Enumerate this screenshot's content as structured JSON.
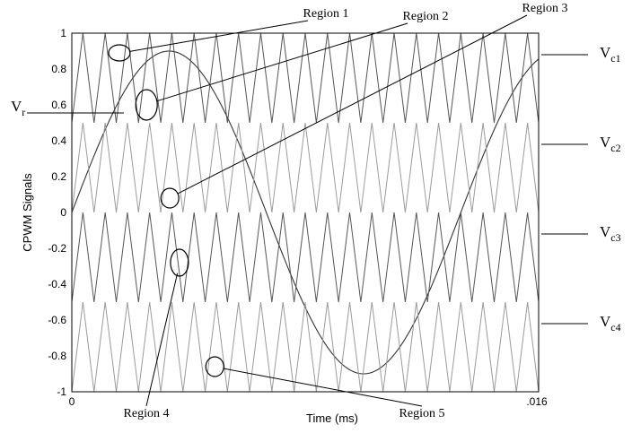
{
  "chart_data": {
    "type": "line",
    "title": "",
    "xlabel": "Time (ms)",
    "ylabel": "CPWM Signals",
    "xlim": [
      0,
      0.016
    ],
    "ylim": [
      -1,
      1
    ],
    "x_tick_labels": [
      "0",
      ".016"
    ],
    "y_ticks": [
      1,
      0.8,
      0.6,
      0.4,
      0.2,
      0,
      -0.2,
      -0.4,
      -0.6,
      -0.8,
      -1
    ],
    "y_tick_labels": [
      "1",
      "0.8",
      "0.6",
      "0.4",
      "0.2",
      "0",
      "-0.2",
      "-0.4",
      "-0.6",
      "-0.8",
      "-1"
    ],
    "grid": false,
    "series": [
      {
        "name": "Vr",
        "label_main": "V",
        "label_sub": "r",
        "type": "sine",
        "amplitude": 0.9,
        "periods_in_window": 1.2,
        "color": "#333333"
      },
      {
        "name": "Vc1",
        "label_main": "V",
        "label_sub": "c1",
        "type": "triangle",
        "min": 0.5,
        "max": 1.0,
        "periods_in_window": 21,
        "color": "#555555"
      },
      {
        "name": "Vc2",
        "label_main": "V",
        "label_sub": "c2",
        "type": "triangle",
        "min": 0.0,
        "max": 0.5,
        "periods_in_window": 21,
        "color": "#9a9a9a"
      },
      {
        "name": "Vc3",
        "label_main": "V",
        "label_sub": "c3",
        "type": "triangle",
        "min": -0.5,
        "max": 0.0,
        "periods_in_window": 21,
        "color": "#555555"
      },
      {
        "name": "Vc4",
        "label_main": "V",
        "label_sub": "c4",
        "type": "triangle",
        "min": -1.0,
        "max": -0.5,
        "periods_in_window": 21,
        "color": "#9a9a9a"
      }
    ],
    "annotations": [
      {
        "text": "Region 1",
        "x": 0.00163,
        "y": 0.89
      },
      {
        "text": "Region 2",
        "x": 0.00256,
        "y": 0.6
      },
      {
        "text": "Region 3",
        "x": 0.00336,
        "y": 0.08
      },
      {
        "text": "Region 4",
        "x": 0.00369,
        "y": -0.28
      },
      {
        "text": "Region 5",
        "x": 0.0049,
        "y": -0.86
      }
    ]
  }
}
